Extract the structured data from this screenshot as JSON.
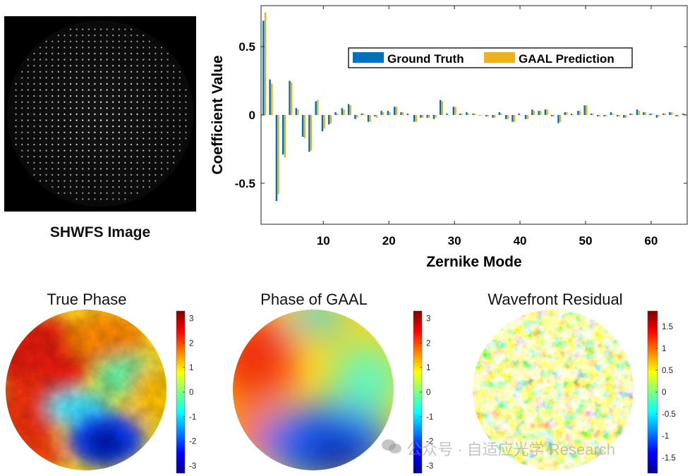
{
  "shwfs": {
    "caption": "SHWFS Image"
  },
  "chart_data": {
    "type": "bar",
    "xlabel": "Zernike Mode",
    "ylabel": "Coefficient Value",
    "xlim": [
      0.5,
      65.5
    ],
    "ylim": [
      -0.8,
      0.8
    ],
    "xticks": [
      "10",
      "20",
      "30",
      "40",
      "50",
      "60"
    ],
    "yticks": [
      "0.5",
      "0",
      "-0.5"
    ],
    "legend_position": "top-right",
    "series": [
      {
        "name": "Ground Truth",
        "color": "#0072BD",
        "values": [
          0.69,
          0.26,
          -0.63,
          -0.29,
          0.25,
          0.05,
          -0.16,
          -0.27,
          0.1,
          -0.12,
          -0.07,
          0.02,
          0.05,
          0.08,
          -0.03,
          0.01,
          -0.05,
          -0.01,
          0.03,
          0.03,
          0.06,
          0.02,
          0.01,
          -0.05,
          -0.02,
          -0.02,
          -0.03,
          0.11,
          0.01,
          0.06,
          0.01,
          0.02,
          0.01,
          0.0,
          -0.01,
          -0.02,
          0.02,
          -0.03,
          -0.05,
          0.01,
          -0.03,
          0.04,
          0.03,
          0.04,
          -0.01,
          -0.06,
          0.02,
          0.01,
          0.03,
          0.07,
          0.01,
          -0.01,
          -0.01,
          0.02,
          -0.01,
          -0.02,
          0.01,
          0.04,
          0.02,
          0.01,
          -0.02,
          0.01,
          0.02,
          -0.01,
          0.01
        ]
      },
      {
        "name": "GAAL Prediction",
        "color": "#EDB120",
        "values": [
          0.75,
          0.23,
          -0.58,
          -0.31,
          0.24,
          0.04,
          -0.17,
          -0.26,
          0.11,
          -0.1,
          -0.06,
          0.01,
          0.04,
          0.07,
          -0.02,
          0.01,
          -0.05,
          -0.02,
          0.02,
          0.02,
          0.06,
          0.02,
          0.0,
          -0.05,
          -0.02,
          -0.02,
          -0.02,
          0.1,
          0.0,
          0.06,
          0.01,
          0.01,
          0.01,
          0.0,
          -0.01,
          -0.02,
          0.01,
          -0.03,
          -0.05,
          0.0,
          -0.03,
          0.03,
          0.03,
          0.04,
          -0.01,
          -0.05,
          0.02,
          0.0,
          0.03,
          0.07,
          0.01,
          -0.01,
          -0.01,
          0.01,
          -0.01,
          -0.02,
          0.01,
          0.03,
          0.02,
          0.01,
          -0.01,
          0.01,
          0.02,
          -0.01,
          0.01
        ]
      }
    ]
  },
  "maps": [
    {
      "title": "True Phase",
      "colorbar_ticks": [
        "3",
        "2",
        "1",
        "0",
        "-1",
        "-2",
        "-3"
      ]
    },
    {
      "title": "Phase of GAAL",
      "colorbar_ticks": [
        "3",
        "2",
        "1",
        "0",
        "-1",
        "-2",
        "-3"
      ]
    },
    {
      "title": "Wavefront Residual",
      "colorbar_ticks": [
        "1.5",
        "1",
        "0.5",
        "0",
        "-0.5",
        "-1",
        "-1.5"
      ]
    }
  ],
  "watermark": {
    "text": "公众号 · 自适应光学 Research",
    "icon": "wechat-icon"
  }
}
